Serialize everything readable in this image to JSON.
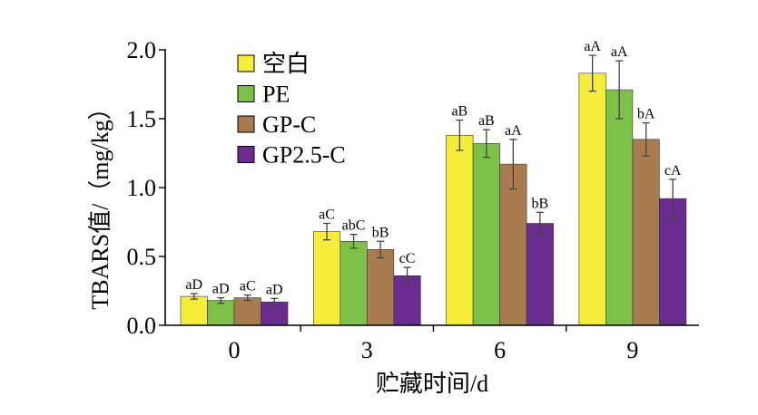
{
  "chart_data": {
    "type": "bar",
    "categories": [
      "0",
      "3",
      "6",
      "9"
    ],
    "xlabel": "贮藏时间/d",
    "ylabel": "TBARS值/（mg/kg）",
    "ylim": [
      0,
      2.0
    ],
    "yticks": [
      "0.0",
      "0.5",
      "1.0",
      "1.5",
      "2.0"
    ],
    "grid": false,
    "legend": {
      "placement": "top-left"
    },
    "series": [
      {
        "name": "空白",
        "color": "#f5ec3c",
        "values": [
          0.21,
          0.68,
          1.38,
          1.83
        ],
        "errors": [
          0.02,
          0.06,
          0.11,
          0.13
        ],
        "labels": [
          "aD",
          "aC",
          "aB",
          "aA"
        ]
      },
      {
        "name": "PE",
        "color": "#7dc148",
        "values": [
          0.18,
          0.61,
          1.32,
          1.71
        ],
        "errors": [
          0.02,
          0.05,
          0.1,
          0.21
        ],
        "labels": [
          "aD",
          "abC",
          "aB",
          "aA"
        ]
      },
      {
        "name": "GP-C",
        "color": "#a97c50",
        "values": [
          0.2,
          0.55,
          1.17,
          1.35
        ],
        "errors": [
          0.02,
          0.06,
          0.18,
          0.12
        ],
        "labels": [
          "aC",
          "bB",
          "aA",
          "bA"
        ]
      },
      {
        "name": "GP2.5-C",
        "color": "#6b2c8f",
        "values": [
          0.17,
          0.36,
          0.74,
          0.92
        ],
        "errors": [
          0.025,
          0.06,
          0.08,
          0.14
        ],
        "labels": [
          "aD",
          "cC",
          "bB",
          "cA"
        ]
      }
    ]
  }
}
